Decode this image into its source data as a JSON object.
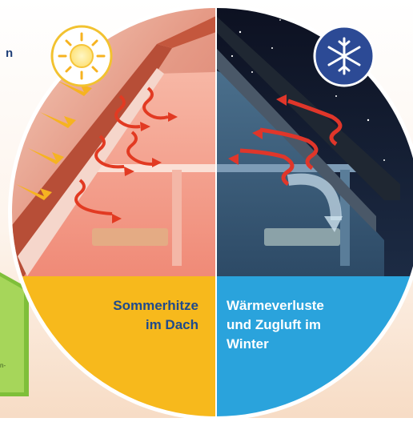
{
  "left_panel": {
    "title_lines": [
      "Sommerhitze",
      "im Dach"
    ],
    "icon": "sun-icon",
    "accent": "#f7b91c"
  },
  "right_panel": {
    "title_lines": [
      "Wärmeverluste",
      "und Zugluft im",
      "Winter"
    ],
    "icon": "snowflake-icon",
    "accent": "#2aa3dc"
  },
  "edge_text": {
    "top_letter": "n",
    "side_fragment": "n-"
  },
  "colors": {
    "summer_sky": "#e9a08c",
    "summer_roof": "#c75a3f",
    "winter_sky": "#0b1022",
    "heat_arrow": "#e23a22",
    "sun_arrow": "#f6b321",
    "caption_text": "#1f4a8c"
  }
}
